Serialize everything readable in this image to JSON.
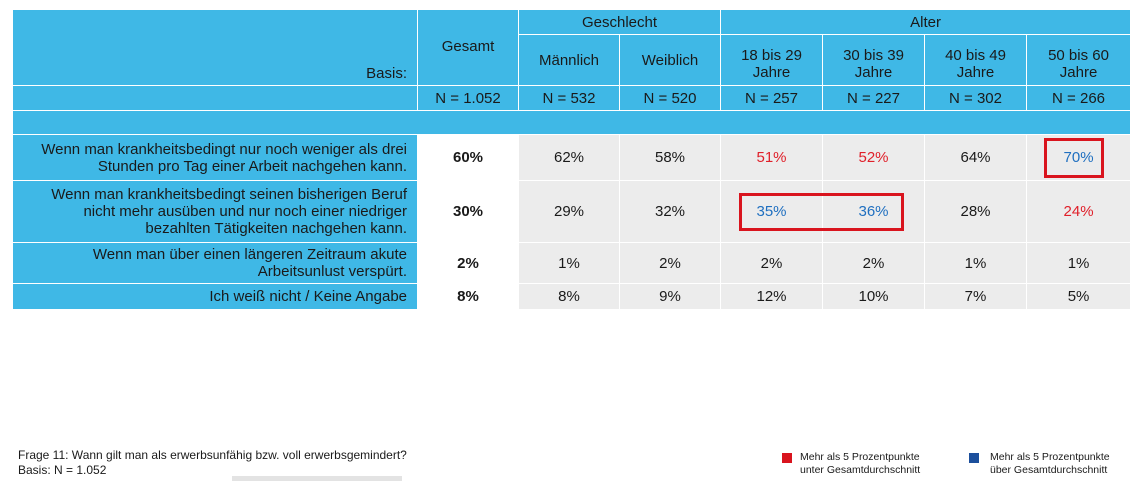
{
  "header": {
    "groups": {
      "geschlecht": "Geschlecht",
      "alter": "Alter"
    },
    "basis_label": "Basis:",
    "columns": [
      {
        "label": "Gesamt",
        "n": "N = 1.052"
      },
      {
        "label": "Männlich",
        "n": "N = 532"
      },
      {
        "label": "Weiblich",
        "n": "N = 520"
      },
      {
        "label": "18 bis 29 Jahre",
        "n": "N = 257"
      },
      {
        "label": "30 bis 39 Jahre",
        "n": "N = 227"
      },
      {
        "label": "40 bis 49 Jahre",
        "n": "N = 302"
      },
      {
        "label": "50 bis 60 Jahre",
        "n": "N = 266"
      }
    ]
  },
  "rows": [
    {
      "question": "Wenn man krankheitsbedingt nur noch weniger als drei Stunden pro Tag einer Arbeit nachgehen kann.",
      "values": [
        "60%",
        "62%",
        "58%",
        "51%",
        "52%",
        "64%",
        "70%"
      ],
      "marks": [
        "",
        "",
        "",
        "below",
        "below",
        "",
        "above"
      ]
    },
    {
      "question": "Wenn man krankheitsbedingt seinen bisherigen Beruf nicht mehr ausüben und nur noch einer niedriger bezahlten Tätigkeiten nachgehen kann.",
      "values": [
        "30%",
        "29%",
        "32%",
        "35%",
        "36%",
        "28%",
        "24%"
      ],
      "marks": [
        "",
        "",
        "",
        "above",
        "above",
        "",
        "below"
      ]
    },
    {
      "question": "Wenn man über einen längeren Zeitraum akute Arbeitsunlust verspürt.",
      "values": [
        "2%",
        "1%",
        "2%",
        "2%",
        "2%",
        "1%",
        "1%"
      ],
      "marks": [
        "",
        "",
        "",
        "",
        "",
        "",
        ""
      ]
    },
    {
      "question": "Ich weiß nicht / Keine Angabe",
      "values": [
        "8%",
        "8%",
        "9%",
        "12%",
        "10%",
        "7%",
        "5%"
      ],
      "marks": [
        "",
        "",
        "",
        "",
        "",
        "",
        ""
      ]
    }
  ],
  "footer": {
    "question": "Frage 11: Wann gilt man als erwerbsunfähig bzw. voll erwerbsgemindert?",
    "basis": "Basis: N = 1.052"
  },
  "legend": [
    {
      "line1": "Mehr als 5 Prozentpunkte",
      "line2": "unter Gesamtdurchschnitt",
      "color": "#d9141e"
    },
    {
      "line1": "Mehr als 5 Prozentpunkte",
      "line2": "über Gesamtdurchschnitt",
      "color": "#1c4f9c"
    }
  ],
  "colors": {
    "header_bg": "#3fb8e6",
    "cell_bg": "#ececec",
    "below": "#e0202a",
    "above": "#1f6fc0",
    "highlight_box": "#d9141e"
  }
}
